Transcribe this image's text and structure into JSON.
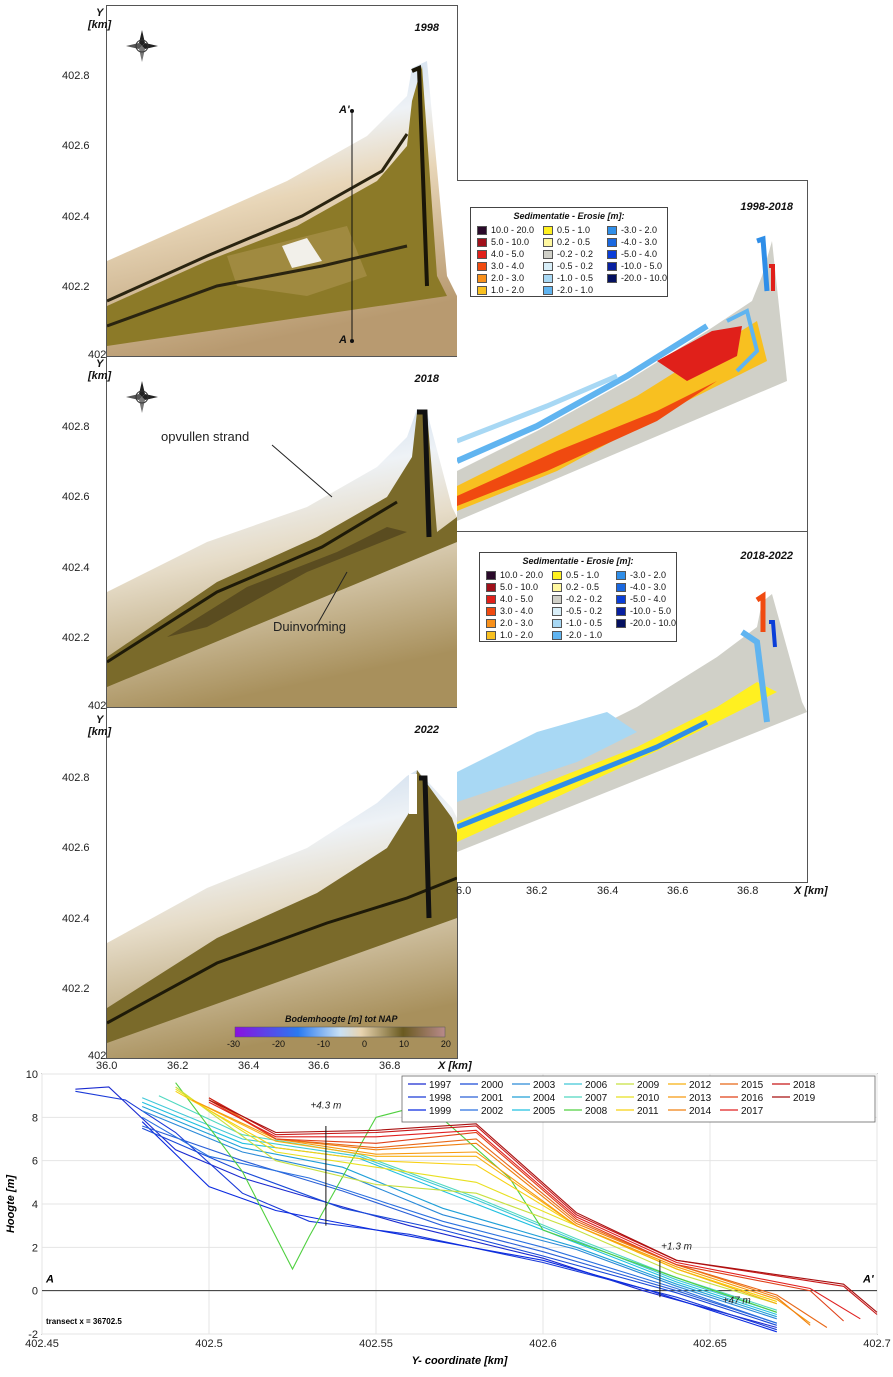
{
  "maps": {
    "y_label": "Y",
    "y_unit": "[km]",
    "x_label": "X [km]",
    "y_ticks": [
      "402.8",
      "402.6",
      "402.4",
      "402.2",
      "402"
    ],
    "x_ticks": [
      "36.0",
      "36.2",
      "36.4",
      "36.6",
      "36.8"
    ],
    "x_ticks_right": [
      "36.0",
      "36.2",
      "36.4",
      "36.6",
      "36.8"
    ],
    "x_ticks_right_first": "6.0",
    "panel_1998": {
      "year": "1998",
      "transect_top": "A'",
      "transect_bottom": "A"
    },
    "panel_2018": {
      "year": "2018",
      "annotations": [
        "opvullen strand",
        "Duinvorming"
      ]
    },
    "panel_2022": {
      "year": "2022"
    },
    "diff_1998_2018": {
      "period": "1998-2018"
    },
    "diff_2018_2022": {
      "period": "2018-2022"
    },
    "sed_legend": {
      "title": "Sedimentatie - Erosie [m]:",
      "items": [
        {
          "label": "10.0 - 20.0",
          "color": "#2a0a2a"
        },
        {
          "label": "5.0 - 10.0",
          "color": "#a0101a"
        },
        {
          "label": "4.0 - 5.0",
          "color": "#e0201a"
        },
        {
          "label": "3.0 - 4.0",
          "color": "#f04a10"
        },
        {
          "label": "2.0 - 3.0",
          "color": "#f8901a"
        },
        {
          "label": "1.0 - 2.0",
          "color": "#f8c020"
        },
        {
          "label": "0.5 - 1.0",
          "color": "#fff020"
        },
        {
          "label": "0.2 - 0.5",
          "color": "#fff8a0"
        },
        {
          "label": "-0.2 - 0.2",
          "color": "#d0d0c8"
        },
        {
          "label": "-0.5 - 0.2",
          "color": "#d8eef8"
        },
        {
          "label": "-1.0 - 0.5",
          "color": "#a8d8f4"
        },
        {
          "label": "-2.0 - 1.0",
          "color": "#60b4f0"
        },
        {
          "label": "-3.0 - 2.0",
          "color": "#2f8ee8"
        },
        {
          "label": "-4.0 - 3.0",
          "color": "#1a68e0"
        },
        {
          "label": "-5.0 - 4.0",
          "color": "#0a3ed8"
        },
        {
          "label": "-10.0 - 5.0",
          "color": "#0820a0"
        },
        {
          "label": "-20.0 - 10.0",
          "color": "#041060"
        }
      ]
    },
    "bed_legend": {
      "title": "Bodemhoogte  [m] tot NAP",
      "ticks": [
        "-30",
        "-20",
        "-10",
        "0",
        "10",
        "20"
      ]
    }
  },
  "chart_data": {
    "type": "line",
    "xlabel": "Y- coordinate [km]",
    "ylabel": "Hoogte [m]",
    "xlim": [
      402.45,
      402.7
    ],
    "ylim": [
      -2,
      10
    ],
    "x_ticks": [
      "402.45",
      "402.5",
      "402.55",
      "402.6",
      "402.65",
      "402.7"
    ],
    "y_ticks": [
      "10",
      "8",
      "6",
      "4",
      "2",
      "0",
      "-2"
    ],
    "grid": true,
    "legend_position": "top-right",
    "transect_label": "transect x = 36702.5",
    "left_marker": "A",
    "right_marker": "A'",
    "annotations": [
      {
        "text": "+4.3 m",
        "x": 402.535,
        "y": 8.4
      },
      {
        "text": "+1.3 m",
        "x": 402.64,
        "y": 1.9
      },
      {
        "text": "+47 m",
        "x": 402.658,
        "y": -0.6
      }
    ],
    "series": [
      {
        "name": "1997",
        "color": "#1a2ad0",
        "x": [
          402.46,
          402.47,
          402.49,
          402.51,
          402.53,
          402.56,
          402.6,
          402.63,
          402.67
        ],
        "y": [
          9.3,
          9.4,
          6.5,
          5.2,
          4.3,
          3.0,
          1.5,
          0.0,
          -1.7
        ]
      },
      {
        "name": "1998",
        "color": "#1a3ad8",
        "x": [
          402.46,
          402.475,
          402.49,
          402.51,
          402.53,
          402.56,
          402.6,
          402.64,
          402.67
        ],
        "y": [
          9.2,
          8.8,
          7.3,
          4.5,
          3.2,
          2.6,
          1.3,
          -0.3,
          -1.8
        ]
      },
      {
        "name": "1999",
        "color": "#0a2ae0",
        "x": [
          402.48,
          402.5,
          402.52,
          402.55,
          402.6,
          402.63,
          402.67
        ],
        "y": [
          7.8,
          4.8,
          3.7,
          2.8,
          1.4,
          0.1,
          -1.9
        ]
      },
      {
        "name": "2000",
        "color": "#1a4ad8",
        "x": [
          402.48,
          402.51,
          402.54,
          402.57,
          402.6,
          402.64,
          402.67
        ],
        "y": [
          7.5,
          5.5,
          3.8,
          2.8,
          1.6,
          -0.1,
          -1.6
        ]
      },
      {
        "name": "2001",
        "color": "#2a60d8",
        "x": [
          402.48,
          402.51,
          402.54,
          402.57,
          402.6,
          402.64,
          402.67
        ],
        "y": [
          7.6,
          6.0,
          4.6,
          3.0,
          1.8,
          0.0,
          -1.5
        ]
      },
      {
        "name": "2002",
        "color": "#2a70e0",
        "x": [
          402.48,
          402.5,
          402.53,
          402.57,
          402.6,
          402.64,
          402.67
        ],
        "y": [
          8.0,
          6.2,
          5.2,
          3.2,
          2.0,
          0.1,
          -1.5
        ]
      },
      {
        "name": "2003",
        "color": "#2a8ad8",
        "x": [
          402.48,
          402.51,
          402.54,
          402.57,
          402.61,
          402.64,
          402.67
        ],
        "y": [
          8.3,
          6.4,
          5.4,
          3.5,
          1.9,
          0.2,
          -1.3
        ]
      },
      {
        "name": "2004",
        "color": "#20a0d8",
        "x": [
          402.48,
          402.51,
          402.54,
          402.57,
          402.61,
          402.64,
          402.67
        ],
        "y": [
          8.5,
          6.6,
          5.7,
          3.8,
          2.0,
          0.3,
          -1.2
        ]
      },
      {
        "name": "2005",
        "color": "#20c0e0",
        "x": [
          402.48,
          402.51,
          402.545,
          402.58,
          402.61,
          402.64,
          402.67
        ],
        "y": [
          8.7,
          6.8,
          6.1,
          4.0,
          2.2,
          0.4,
          -1.1
        ]
      },
      {
        "name": "2006",
        "color": "#40c8d8",
        "x": [
          402.48,
          402.51,
          402.545,
          402.58,
          402.61,
          402.64,
          402.67
        ],
        "y": [
          8.9,
          7.0,
          6.2,
          4.2,
          2.3,
          0.5,
          -1.0
        ]
      },
      {
        "name": "2007",
        "color": "#50d8c0",
        "x": [
          402.485,
          402.51,
          402.545,
          402.58,
          402.61,
          402.64,
          402.67
        ],
        "y": [
          9.0,
          7.2,
          6.3,
          4.3,
          2.4,
          0.6,
          -0.9
        ]
      },
      {
        "name": "2008",
        "color": "#50d040",
        "x": [
          402.49,
          402.51,
          402.525,
          402.53,
          402.55,
          402.565,
          402.59,
          402.6,
          402.64,
          402.67
        ],
        "y": [
          9.6,
          5.5,
          1.0,
          2.5,
          8.0,
          8.6,
          5.2,
          2.8,
          0.6,
          -1.0
        ]
      },
      {
        "name": "2009",
        "color": "#c8e040",
        "x": [
          402.49,
          402.52,
          402.55,
          402.58,
          402.61,
          402.64,
          402.67
        ],
        "y": [
          9.4,
          6.0,
          4.9,
          4.5,
          2.8,
          0.8,
          -0.6
        ]
      },
      {
        "name": "2010",
        "color": "#e8e020",
        "x": [
          402.49,
          402.52,
          402.55,
          402.58,
          402.61,
          402.64,
          402.67
        ],
        "y": [
          9.3,
          6.4,
          5.7,
          5.0,
          3.0,
          1.0,
          -0.5
        ]
      },
      {
        "name": "2011",
        "color": "#f8d010",
        "x": [
          402.49,
          402.52,
          402.55,
          402.58,
          402.61,
          402.64,
          402.67
        ],
        "y": [
          9.2,
          6.6,
          6.0,
          5.8,
          3.0,
          1.0,
          -0.5
        ]
      },
      {
        "name": "2012",
        "color": "#f8b010",
        "x": [
          402.495,
          402.52,
          402.55,
          402.58,
          402.61,
          402.64,
          402.67
        ],
        "y": [
          8.8,
          6.9,
          6.2,
          6.2,
          3.0,
          1.0,
          -0.6
        ]
      },
      {
        "name": "2013",
        "color": "#f89a10",
        "x": [
          402.495,
          402.52,
          402.55,
          402.58,
          402.61,
          402.64,
          402.67,
          402.68
        ],
        "y": [
          8.8,
          7.0,
          6.3,
          6.4,
          3.0,
          1.1,
          -0.4,
          -1.5
        ]
      },
      {
        "name": "2014",
        "color": "#f08010",
        "x": [
          402.5,
          402.52,
          402.55,
          402.58,
          402.61,
          402.64,
          402.67,
          402.68
        ],
        "y": [
          8.9,
          7.0,
          6.5,
          6.8,
          3.1,
          1.2,
          -0.3,
          -1.6
        ]
      },
      {
        "name": "2015",
        "color": "#e86818",
        "x": [
          402.5,
          402.52,
          402.55,
          402.58,
          402.61,
          402.64,
          402.67,
          402.685
        ],
        "y": [
          8.9,
          7.0,
          6.6,
          7.0,
          3.2,
          1.2,
          -0.2,
          -1.7
        ]
      },
      {
        "name": "2016",
        "color": "#e04018",
        "x": [
          402.5,
          402.52,
          402.55,
          402.58,
          402.61,
          402.64,
          402.68,
          402.69
        ],
        "y": [
          8.8,
          7.0,
          6.8,
          7.3,
          3.3,
          1.2,
          0.0,
          -1.4
        ]
      },
      {
        "name": "2017",
        "color": "#e02020",
        "x": [
          402.5,
          402.52,
          402.55,
          402.58,
          402.61,
          402.64,
          402.68,
          402.695
        ],
        "y": [
          8.7,
          7.1,
          7.1,
          7.4,
          3.4,
          1.3,
          0.1,
          -1.3
        ]
      },
      {
        "name": "2018",
        "color": "#c81818",
        "x": [
          402.5,
          402.52,
          402.55,
          402.58,
          402.61,
          402.64,
          402.69,
          402.7
        ],
        "y": [
          8.9,
          7.2,
          7.3,
          7.6,
          3.5,
          1.4,
          0.2,
          -1.1
        ]
      },
      {
        "name": "2019",
        "color": "#a81010",
        "x": [
          402.5,
          402.52,
          402.55,
          402.58,
          402.61,
          402.64,
          402.69,
          402.7
        ],
        "y": [
          8.8,
          7.3,
          7.4,
          7.7,
          3.6,
          1.4,
          0.3,
          -1.0
        ]
      }
    ]
  }
}
